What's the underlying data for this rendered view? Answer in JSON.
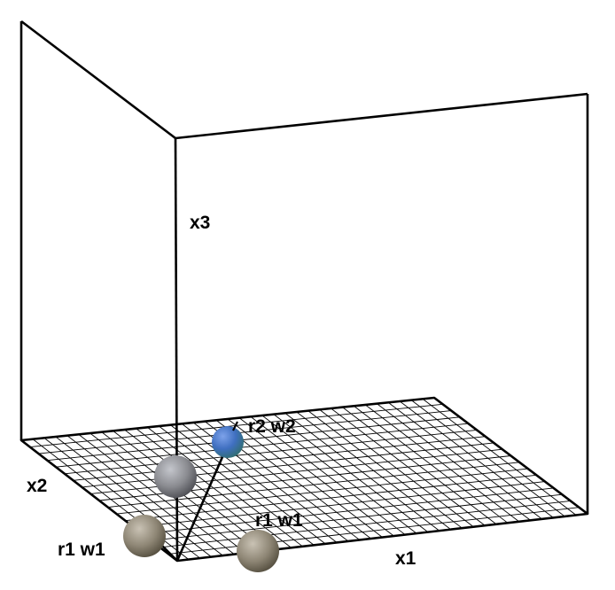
{
  "axes": {
    "x1": "x1",
    "x2": "x2",
    "x3": "x3"
  },
  "points": [
    {
      "label": "r1 w1",
      "color": "#8a8a8a"
    },
    {
      "label": "",
      "color": "#8a8a8a"
    },
    {
      "label": "r1 w1",
      "color": "#8a8a8a"
    },
    {
      "label": "r2 w2",
      "color": "#3f6fc0"
    }
  ],
  "colors": {
    "frame": "#000000",
    "grid": "#000000",
    "sphere_gray": "#8a8a8a",
    "sphere_blue": "#3f6fc0",
    "sphere_teal": "#2e8a7a"
  }
}
